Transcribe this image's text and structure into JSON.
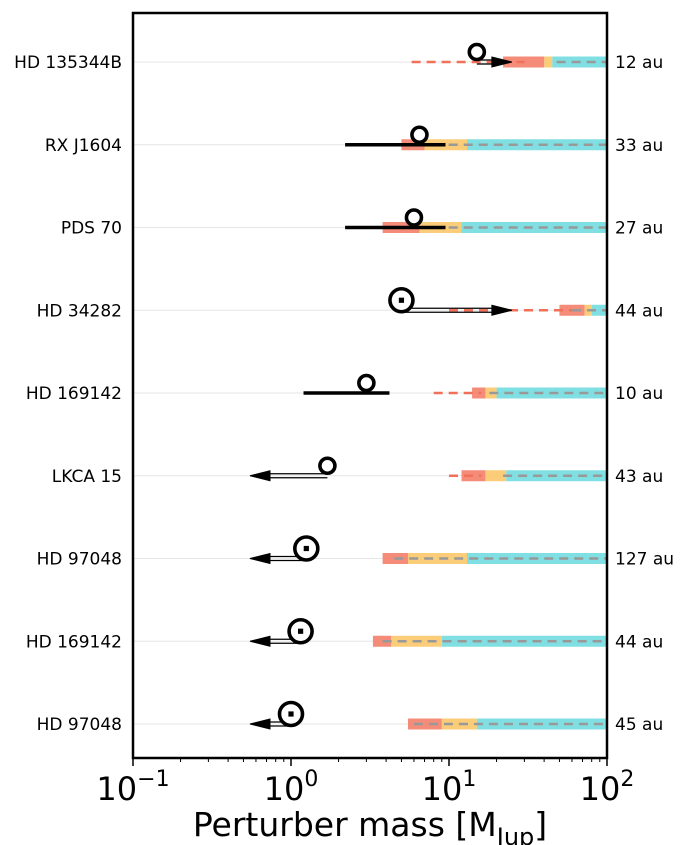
{
  "chart_data": {
    "type": "scatter",
    "xscale": "log",
    "xlim": [
      0.1,
      100
    ],
    "xlabel": "Perturber mass [M",
    "xlabel_sub": "Jup",
    "xlabel_close": "]",
    "xticks": [
      {
        "value": 0.1,
        "base": "10",
        "exp": "−1"
      },
      {
        "value": 1,
        "base": "10",
        "exp": "0"
      },
      {
        "value": 10,
        "base": "10",
        "exp": "1"
      },
      {
        "value": 100,
        "base": "10",
        "exp": "2"
      }
    ],
    "grid": "horizontal",
    "colors": {
      "red": "#f4806c",
      "orange": "#fbc86a",
      "cyan": "#72dbe0",
      "dash_gray": "#999999",
      "dash_red": "#f0705a"
    },
    "rows": [
      {
        "star": "HD 135344B",
        "sep": "12 au",
        "marker": {
          "x": 15,
          "type": "ring"
        },
        "arrow": {
          "dir": "right",
          "to": 25
        },
        "dash_red": [
          5.8,
          30
        ],
        "dash_gray": [
          48,
          100
        ],
        "red": [
          22,
          40
        ],
        "orange": [
          40,
          45
        ],
        "cyan": [
          45,
          100
        ]
      },
      {
        "star": "RX J1604",
        "sep": "33 au",
        "marker": {
          "x": 6.5,
          "type": "ring"
        },
        "errbar": [
          2.2,
          9.5
        ],
        "dash_gray": [
          8,
          100
        ],
        "red": [
          5,
          7
        ],
        "orange": [
          7,
          13
        ],
        "cyan": [
          13,
          100
        ]
      },
      {
        "star": "PDS 70",
        "sep": "27 au",
        "marker": {
          "x": 6,
          "type": "ring"
        },
        "errbar": [
          2.2,
          9.5
        ],
        "dash_gray": [
          8,
          100
        ],
        "red": [
          3.8,
          6.5
        ],
        "orange": [
          6.5,
          12
        ],
        "cyan": [
          12,
          100
        ]
      },
      {
        "star": "HD 34282",
        "sep": "44 au",
        "marker": {
          "x": 5,
          "type": "ring_dot"
        },
        "arrow": {
          "dir": "right",
          "to": 25
        },
        "dash_red": [
          10,
          60
        ],
        "dash_gray": [
          60,
          100
        ],
        "red": [
          50,
          72
        ],
        "orange": [
          72,
          80
        ],
        "cyan": [
          80,
          100
        ]
      },
      {
        "star": "HD 169142",
        "sep": "10 au",
        "marker": {
          "x": 3,
          "type": "ring"
        },
        "errbar": [
          1.2,
          4.2
        ],
        "dash_red": [
          8,
          16
        ],
        "dash_gray": [
          18,
          100
        ],
        "red": [
          14,
          17
        ],
        "orange": [
          17,
          20
        ],
        "cyan": [
          20,
          100
        ]
      },
      {
        "star": "LKCA 15",
        "sep": "43 au",
        "marker": {
          "x": 1.7,
          "type": "ring"
        },
        "arrow": {
          "dir": "left",
          "to": 0.55
        },
        "dash_red": [
          10,
          16
        ],
        "dash_gray": [
          22,
          100
        ],
        "red": [
          12,
          17
        ],
        "orange": [
          17,
          23
        ],
        "cyan": [
          23,
          100
        ]
      },
      {
        "star": "HD 97048",
        "sep": "127 au",
        "marker": {
          "x": 1.25,
          "type": "ring_dot"
        },
        "arrow": {
          "dir": "left",
          "to": 0.55
        },
        "dash_gray": [
          4.5,
          100
        ],
        "red": [
          3.8,
          5.5
        ],
        "orange": [
          5.5,
          13
        ],
        "cyan": [
          13,
          100
        ]
      },
      {
        "star": "HD 169142",
        "sep": "44 au",
        "marker": {
          "x": 1.15,
          "type": "ring_dot"
        },
        "arrow": {
          "dir": "left",
          "to": 0.55
        },
        "dash_gray": [
          3.8,
          100
        ],
        "red": [
          3.3,
          4.3
        ],
        "orange": [
          4.3,
          9
        ],
        "cyan": [
          9,
          100
        ]
      },
      {
        "star": "HD 97048",
        "sep": "45 au",
        "marker": {
          "x": 1,
          "type": "ring_dot"
        },
        "arrow": {
          "dir": "left",
          "to": 0.55
        },
        "dash_gray": [
          6,
          100
        ],
        "red": [
          5.5,
          9
        ],
        "orange": [
          9,
          15
        ],
        "cyan": [
          15,
          100
        ]
      }
    ]
  }
}
